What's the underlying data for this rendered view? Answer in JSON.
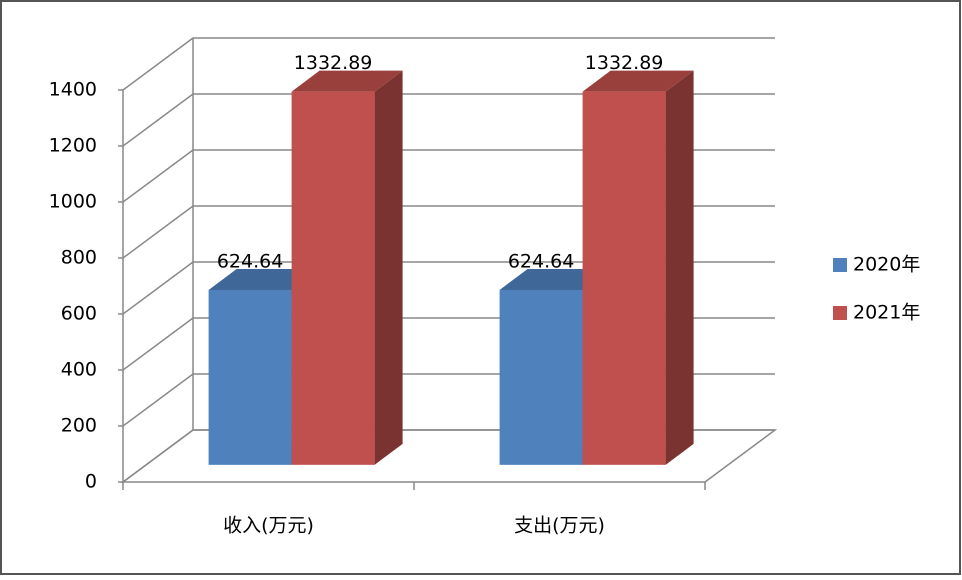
{
  "chart_data": {
    "type": "bar3d",
    "categories": [
      "收入(万元)",
      "支出(万元)"
    ],
    "series": [
      {
        "name": "2020年",
        "color": "#4f81bd",
        "values": [
          624.64,
          624.64
        ]
      },
      {
        "name": "2021年",
        "color": "#c0504d",
        "values": [
          1332.89,
          1332.89
        ]
      }
    ],
    "ylim": [
      0,
      1400
    ],
    "yticks": [
      0,
      200,
      400,
      600,
      800,
      1000,
      1200,
      1400
    ],
    "grid": true,
    "legend": "right"
  }
}
